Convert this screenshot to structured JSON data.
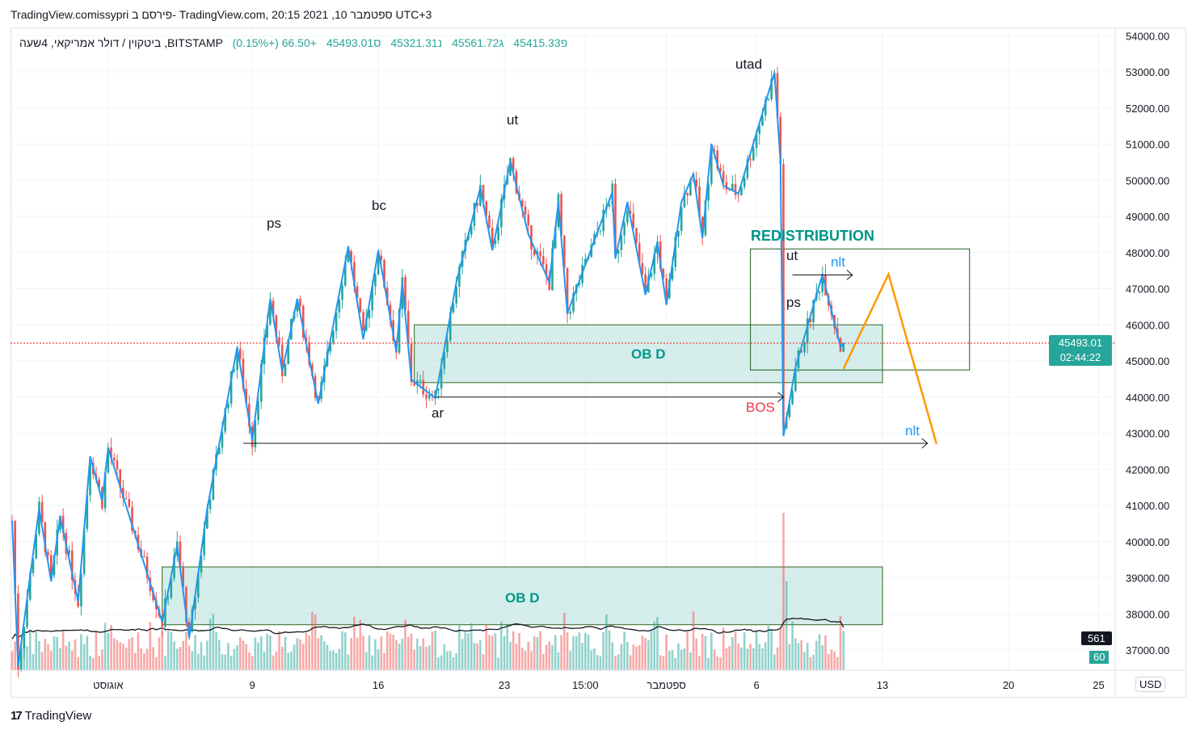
{
  "publisher": "TradingView.comissypri פירסם ב- TradingView.com, 20:15 2021 ,10 ספטמבר UTC+3",
  "legend": {
    "symbol": "ביטקוין / דולר אמריקאי, 4שעה ,BITSTAMP",
    "open": "פ45415.33",
    "high": "ג45561.72",
    "low": "נ45321.31",
    "close": "ס45493.01",
    "change": "+66.50 (+0.15%)"
  },
  "currency": "USD",
  "last_price": "45493.01",
  "countdown": "02:44:22",
  "volume_label": "561",
  "volume_label2": "60",
  "brand": "TradingView",
  "colors": {
    "up": "#26a69a",
    "down": "#ef5350",
    "zigzag": "#2196f3",
    "projection": "#ff9800",
    "box": "#b2dfdb"
  },
  "chart_data": {
    "type": "candlestick",
    "title": "BTC/USD 4h BITSTAMP",
    "ylim": [
      36500,
      54700
    ],
    "y_ticks": [
      54000,
      53000,
      52000,
      51000,
      50000,
      49000,
      48000,
      47000,
      46000,
      45000,
      44000,
      43000,
      42000,
      41000,
      40000,
      39000,
      38000,
      37000
    ],
    "y_tick_labels": [
      "54000.00",
      "53000.00",
      "52000.00",
      "51000.00",
      "50000.00",
      "49000.00",
      "48000.00",
      "47000.00",
      "46000.00",
      "45000.00",
      "44000.00",
      "43000.00",
      "42000.00",
      "41000.00",
      "40000.00",
      "39000.00",
      "38000.00",
      "37000.00"
    ],
    "x_ticks": [
      {
        "bar": 32,
        "label": "אוגוסט"
      },
      {
        "bar": 80,
        "label": "9"
      },
      {
        "bar": 122,
        "label": "16"
      },
      {
        "bar": 164,
        "label": "23"
      },
      {
        "bar": 191,
        "label": "15:00"
      },
      {
        "bar": 218,
        "label": "ספטמבר"
      },
      {
        "bar": 248,
        "label": "6"
      },
      {
        "bar": 290,
        "label": "13"
      },
      {
        "bar": 332,
        "label": "20"
      },
      {
        "bar": 362,
        "label": "25"
      }
    ],
    "price_path": [
      [
        0,
        40575
      ],
      [
        2,
        36553
      ],
      [
        9,
        40910
      ],
      [
        13,
        38900
      ],
      [
        16,
        40690
      ],
      [
        22,
        38340
      ],
      [
        26,
        42360
      ],
      [
        30,
        41130
      ],
      [
        32,
        42590
      ],
      [
        50,
        37780
      ],
      [
        55,
        39900
      ],
      [
        59,
        37335
      ],
      [
        65,
        40910
      ],
      [
        75,
        45380
      ],
      [
        80,
        42810
      ],
      [
        86,
        46720
      ],
      [
        90,
        44710
      ],
      [
        95,
        46720
      ],
      [
        102,
        43815
      ],
      [
        112,
        48170
      ],
      [
        117,
        45600
      ],
      [
        122,
        48060
      ],
      [
        128,
        45270
      ],
      [
        130,
        47170
      ],
      [
        133,
        44490
      ],
      [
        141,
        43970
      ],
      [
        148,
        47170
      ],
      [
        156,
        49800
      ],
      [
        160,
        48060
      ],
      [
        166,
        50530
      ],
      [
        172,
        48510
      ],
      [
        179,
        47170
      ],
      [
        182,
        49400
      ],
      [
        185,
        46320
      ],
      [
        200,
        49680
      ],
      [
        201,
        47840
      ],
      [
        205,
        49400
      ],
      [
        211,
        46830
      ],
      [
        215,
        48280
      ],
      [
        218,
        46550
      ],
      [
        223,
        49400
      ],
      [
        227,
        50180
      ],
      [
        230,
        48400
      ],
      [
        233,
        51010
      ],
      [
        237,
        49850
      ],
      [
        242,
        49630
      ],
      [
        254,
        52980
      ],
      [
        256,
        50520
      ],
      [
        257,
        42920
      ],
      [
        261,
        44820
      ],
      [
        270,
        47390
      ],
      [
        276,
        45380
      ],
      [
        277,
        45493
      ]
    ],
    "last_price": 45493.01,
    "projection": [
      [
        277,
        44780
      ],
      [
        292,
        47400
      ],
      [
        308,
        42700
      ]
    ],
    "zones": [
      {
        "label": "OB D",
        "from_bar": 134,
        "to_bar": 290,
        "top": 46000,
        "bottom": 44400
      },
      {
        "label": "OB D",
        "from_bar": 50,
        "to_bar": 290,
        "top": 39300,
        "bottom": 37700
      }
    ],
    "redistribution_box": {
      "label": "REDISTRIBUTION",
      "from_bar": 246,
      "to_bar": 319,
      "top": 48100,
      "bottom": 44750
    },
    "levels": [
      {
        "from_bar": 141,
        "to_bar": 257,
        "price": 44000,
        "label": "BOS"
      },
      {
        "from_bar": 77,
        "to_bar": 305,
        "price": 42720,
        "label": "nlt"
      },
      {
        "from_bar": 260,
        "to_bar": 280,
        "price": 47380,
        "label": "nlt"
      }
    ],
    "annotations": [
      "ps",
      "bc",
      "ut",
      "utad",
      "ar",
      "ut",
      "ps"
    ]
  }
}
